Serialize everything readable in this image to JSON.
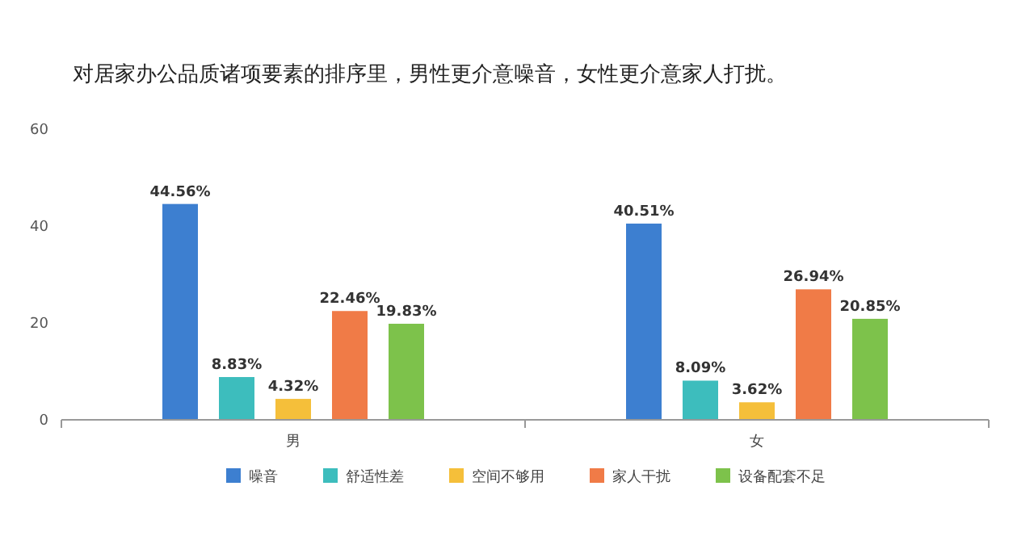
{
  "chart_data": {
    "type": "bar",
    "title": "对居家办公品质诸项要素的排序里，男性更介意噪音，女性更介意家人打扰。",
    "categories": [
      "男",
      "女"
    ],
    "series": [
      {
        "name": "噪音",
        "color": "#3d7fd0",
        "values": [
          44.56,
          40.51
        ],
        "value_labels": [
          "44.56%",
          "40.51%"
        ]
      },
      {
        "name": "舒适性差",
        "color": "#3dbdbd",
        "values": [
          8.83,
          8.09
        ],
        "value_labels": [
          "8.83%",
          "8.09%"
        ]
      },
      {
        "name": "空间不够用",
        "color": "#f5bf3a",
        "values": [
          4.32,
          3.62
        ],
        "value_labels": [
          "4.32%",
          "3.62%"
        ]
      },
      {
        "name": "家人干扰",
        "color": "#f07b47",
        "values": [
          22.46,
          26.94
        ],
        "value_labels": [
          "22.46%",
          "26.94%"
        ]
      },
      {
        "name": "设备配套不足",
        "color": "#7dc24b",
        "values": [
          19.83,
          20.85
        ],
        "value_labels": [
          "19.83%",
          "20.85%"
        ]
      }
    ],
    "ylim": [
      0,
      60
    ],
    "yticks": [
      0,
      20,
      40,
      60
    ],
    "legend": "bottom"
  }
}
